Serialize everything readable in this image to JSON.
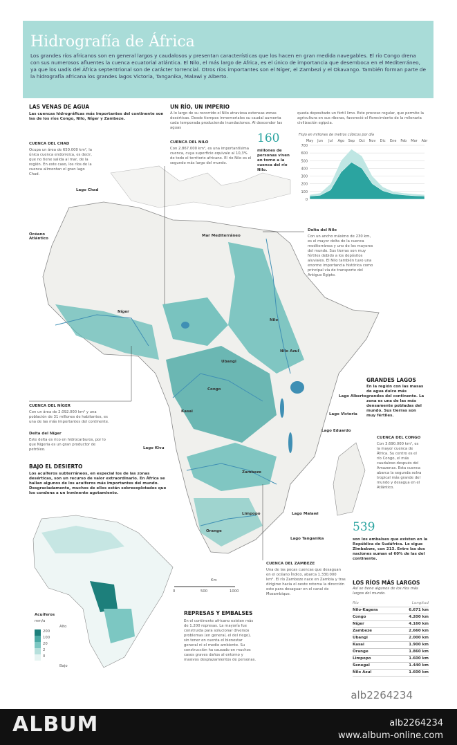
{
  "header": {
    "title": "Hidrografía de África",
    "intro": "Los grandes ríos africanos son en general largos y caudalosos y presentan características que los hacen en gran medida navegables. El río Congo drena con sus numerosos afluentes la cuenca ecuatorial atlántica. El Nilo, el más largo de África, es el único de importancia que desemboca en el Mediterráneo, ya que los uadis del África septentrional son de carácter torrencial. Otros ríos importantes son el Níger, el Zambezi y el Okavango. También forman parte de la hidrografía africana los grandes lagos Victoria, Tanganika, Malawi y Alberto."
  },
  "venas": {
    "title": "LAS VENAS DE AGUA",
    "text": "Las cuencas hidrográficas más importantes del continente son las de los ríos Congo, Nilo, Níger y Zambeze."
  },
  "chad": {
    "title": "CUENCA DEL CHAD",
    "text": "Ocupa un área de 650.000 km², la única cuenca endorreica, es decir, que no tiene salida al mar, de la región. En este caso, los ríos de la cuenca alimentan el gran lago Chad."
  },
  "imperio": {
    "title": "UN RÍO, UN IMPERIO",
    "text_1": "A lo largo de su recorrido el Nilo atraviesa extensas zonas desérticas. Desde tiempos inmemoriales su caudal aumenta cada temporada produciendo inundaciones. Al descender las aguas",
    "text_2": "queda depositado un fértil limo. Este proceso regular, que permite la agricultura en sus riberas, favoreció el florecimiento de la milenaria civilización egipcia."
  },
  "nilo": {
    "title": "CUENCA DEL NILO",
    "text": "Con 2.867.000 km², es una importantísima cuenca, cuya superficie equivale al 10,3% de todo el territorio africano. El río Nilo es el segundo más largo del mundo."
  },
  "personas": {
    "number": "160",
    "text": "millones de personas viven en torno a la cuenca del río Nilo."
  },
  "delta_nilo": {
    "title": "Delta del Nilo",
    "text": "Con un ancho máximo de 230 km, es el mayor delta de la cuenca mediterránea y uno de los mayores del mundo. Sus tierras son muy fértiles debido a los depósitos aluviales. El Nilo también tuvo una enorme importancia histórica como principal vía de transporte del Antiguo Egipto."
  },
  "chart_data": {
    "type": "area",
    "subtitle": "Flujo en millones de metros cúbicos por día",
    "categories": [
      "May",
      "Jun",
      "Jul",
      "Ago",
      "Sep",
      "Oct",
      "Nov",
      "Dic",
      "Ene",
      "Feb",
      "Mar",
      "Abr"
    ],
    "series": [
      {
        "color": "#bfe6e3",
        "values": [
          60,
          80,
          200,
          500,
          650,
          560,
          300,
          160,
          100,
          80,
          70,
          60
        ]
      },
      {
        "color": "#2ba4a0",
        "values": [
          40,
          50,
          120,
          350,
          480,
          400,
          200,
          110,
          70,
          55,
          45,
          40
        ]
      }
    ],
    "ylim": [
      0,
      700
    ],
    "yticks": [
      0,
      100,
      200,
      300,
      400,
      500,
      600,
      700
    ],
    "grid": true
  },
  "map_labels": [
    "Lago Chad",
    "Océano Atlántico",
    "Mar Mediterráneo",
    "Níger",
    "Nilo",
    "Nilo Azul",
    "Congo",
    "Ubangi",
    "Kasai",
    "Zambeze",
    "Limpopo",
    "Orange",
    "Lago Alberto",
    "Lago Victoria",
    "Lago Eduardo",
    "Lago Kivu",
    "Lago Malawi",
    "Lago Tanganika"
  ],
  "lagos": {
    "title": "GRANDES LAGOS",
    "text": "En la región con las masas de agua dulce más grandes del continente. La zona es una de las más densamente pobladas del mundo. Sus tierras son muy fértiles."
  },
  "niger": {
    "title": "CUENCA DEL NÍGER",
    "text": "Con un área de 2.092.000 km² y una población de 31 millones de habitantes, es una de las más importantes del continente."
  },
  "delta_niger": {
    "title": "Delta del Níger",
    "text": "Este delta es rico en hidrocarburos, por lo que Nigeria es un gran productor de petróleo."
  },
  "congo": {
    "title": "CUENCA DEL CONGO",
    "text": "Con 3.690.000 km², es la mayor cuenca de África. Su centro es el río Congo, el más caudaloso después del Amazonas. Esta cuenca abarca la segunda selva tropical más grande del mundo y desagua en el Atlántico."
  },
  "desierto": {
    "title": "BAJO EL DESIERTO",
    "text": "Los acuíferos subterráneos, en especial los de las zonas desérticas, son un recurso de valor extraordinario. En África se hallan algunos de los acuíferos más importantes del mundo. Desgraciadamente, muchos de ellos están sobreexplotados que los condena a un inminente agotamiento."
  },
  "embalses": {
    "number": "539",
    "text": "son los embalses que existen en la República de Sudáfrica. Le sigue Zimbabwe, con 213. Entre las dos naciones suman el 60% de las del continente."
  },
  "zambeze": {
    "title": "CUENCA DEL ZAMBEZE",
    "text": "Una de las pocas cuencas que desaguan en el océano Índico, abarca 1.330.000 km². El río Zambeze nace en Zambia y tras dirigirse hacia el oeste retoma la dirección este para desaguar en el canal de Mozambique."
  },
  "scale": {
    "unit": "Km",
    "labels": [
      "0",
      "500",
      "1000"
    ]
  },
  "represas": {
    "title": "REPRESAS Y EMBALSES",
    "text": "En el continente africano existen más de 1.200 represas. La mayoría fue construida para solucionar diversos problemas (en general, el del riego), sin tener en cuenta el bienestar general ni el medio ambiente. Su construcción ha causado en muchos casos graves daños al entorno y masivos desplazamientos de personas."
  },
  "acuiferos": {
    "title": "Acuíferos",
    "unit": "mm/a",
    "high": "Alto",
    "low": "Bajo",
    "levels": [
      "200",
      "100",
      "20",
      "2",
      "0"
    ]
  },
  "rios": {
    "title": "LOS RÍOS MÁS LARGOS",
    "subtitle": "Así se tiene algunos de los ríos más largos del mundo.",
    "header": [
      "Río",
      "Longitud"
    ],
    "rows": [
      [
        "Nilo-Kagera",
        "6.671 km"
      ],
      [
        "Congo",
        "4.200 km"
      ],
      [
        "Níger",
        "4.160 km"
      ],
      [
        "Zambeze",
        "2.660 km"
      ],
      [
        "Ubangi",
        "2.000 km"
      ],
      [
        "Kasai",
        "1.900 km"
      ],
      [
        "Orange",
        "1.860 km"
      ],
      [
        "Limpopo",
        "1.600 km"
      ],
      [
        "Senegal",
        "1.440 km"
      ],
      [
        "Nilo Azul",
        "1.600 km"
      ]
    ]
  },
  "footer": {
    "id": "alb2264234",
    "brand": "ALBUM",
    "code": "alb2264234",
    "url": "www.album-online.com"
  }
}
